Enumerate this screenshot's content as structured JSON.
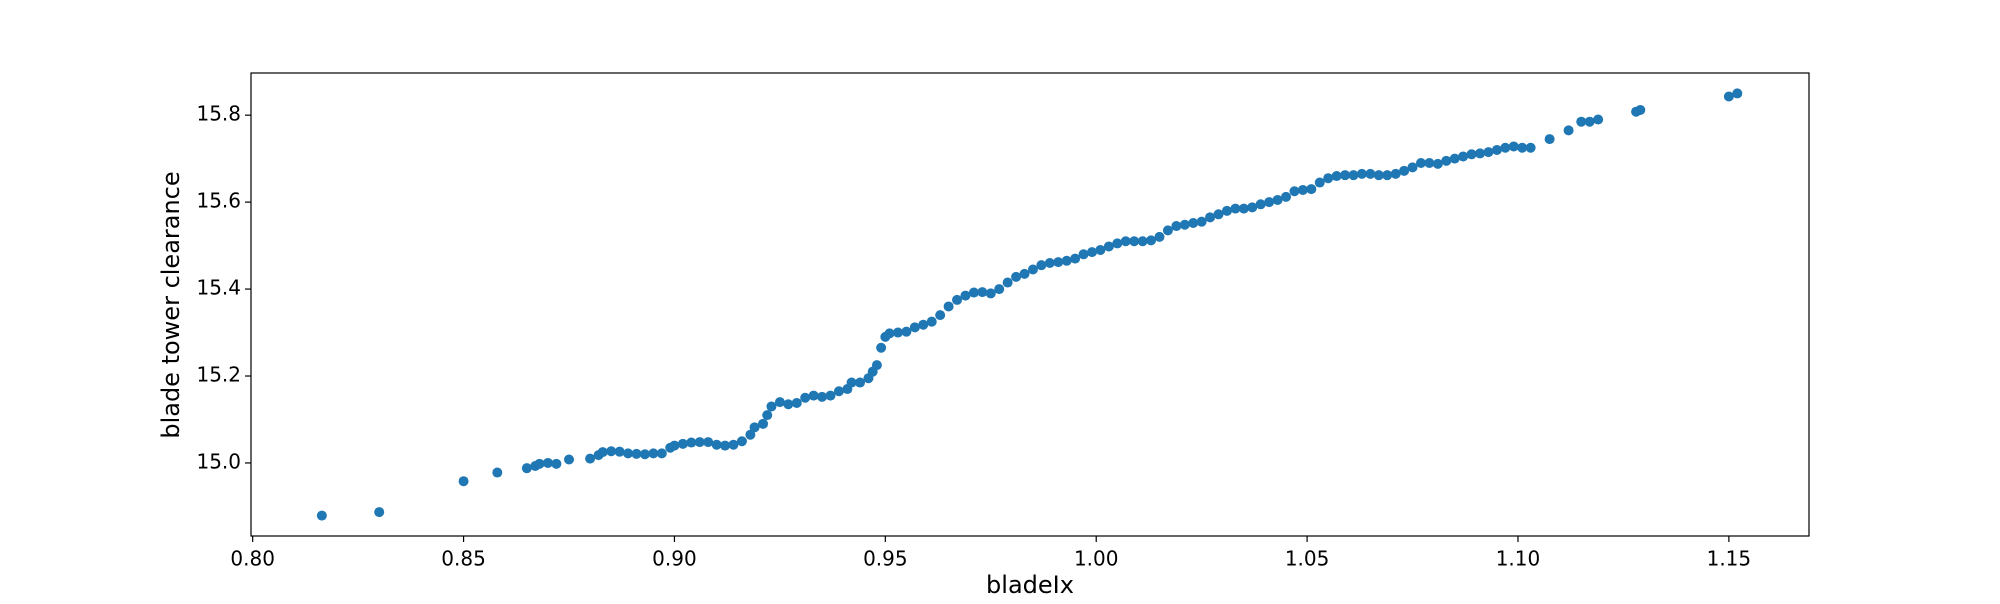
{
  "chart_data": {
    "type": "scatter",
    "x_label": "bladeIx",
    "y_label": "blade tower clearance",
    "color": "#1f77b4",
    "xlim": [
      0.7996,
      1.169
    ],
    "ylim": [
      14.832,
      15.897
    ],
    "xticks": [
      {
        "value": 0.8,
        "label": "0.80"
      },
      {
        "value": 0.85,
        "label": "0.85"
      },
      {
        "value": 0.9,
        "label": "0.90"
      },
      {
        "value": 0.95,
        "label": "0.95"
      },
      {
        "value": 1.0,
        "label": "1.00"
      },
      {
        "value": 1.05,
        "label": "1.05"
      },
      {
        "value": 1.1,
        "label": "1.10"
      },
      {
        "value": 1.15,
        "label": "1.15"
      }
    ],
    "yticks": [
      {
        "value": 15.0,
        "label": "15.0"
      },
      {
        "value": 15.2,
        "label": "15.2"
      },
      {
        "value": 15.4,
        "label": "15.4"
      },
      {
        "value": 15.6,
        "label": "15.6"
      },
      {
        "value": 15.8,
        "label": "15.8"
      }
    ],
    "x": [
      0.8164,
      0.83,
      0.85,
      0.858,
      0.865,
      0.867,
      0.868,
      0.87,
      0.872,
      0.875,
      0.88,
      0.882,
      0.883,
      0.885,
      0.887,
      0.889,
      0.891,
      0.893,
      0.895,
      0.897,
      0.899,
      0.9,
      0.902,
      0.904,
      0.906,
      0.908,
      0.91,
      0.912,
      0.914,
      0.916,
      0.918,
      0.919,
      0.921,
      0.922,
      0.923,
      0.925,
      0.927,
      0.929,
      0.931,
      0.933,
      0.935,
      0.937,
      0.939,
      0.941,
      0.942,
      0.944,
      0.946,
      0.947,
      0.948,
      0.949,
      0.95,
      0.951,
      0.953,
      0.955,
      0.957,
      0.959,
      0.961,
      0.963,
      0.965,
      0.967,
      0.969,
      0.971,
      0.973,
      0.975,
      0.977,
      0.979,
      0.981,
      0.983,
      0.985,
      0.987,
      0.989,
      0.991,
      0.993,
      0.995,
      0.997,
      0.999,
      1.001,
      1.003,
      1.005,
      1.007,
      1.009,
      1.011,
      1.013,
      1.015,
      1.017,
      1.019,
      1.021,
      1.023,
      1.025,
      1.027,
      1.029,
      1.031,
      1.033,
      1.035,
      1.037,
      1.039,
      1.041,
      1.043,
      1.045,
      1.047,
      1.049,
      1.051,
      1.053,
      1.055,
      1.057,
      1.059,
      1.061,
      1.063,
      1.065,
      1.067,
      1.069,
      1.071,
      1.073,
      1.075,
      1.077,
      1.079,
      1.081,
      1.083,
      1.085,
      1.087,
      1.089,
      1.091,
      1.093,
      1.095,
      1.097,
      1.099,
      1.101,
      1.103,
      1.1075,
      1.112,
      1.115,
      1.117,
      1.119,
      1.128,
      1.129,
      1.15,
      1.152
    ],
    "values": [
      14.879,
      14.887,
      14.958,
      14.978,
      14.988,
      14.993,
      14.998,
      15.0,
      14.998,
      15.008,
      15.01,
      15.018,
      15.025,
      15.027,
      15.026,
      15.022,
      15.021,
      15.02,
      15.022,
      15.022,
      15.035,
      15.04,
      15.044,
      15.047,
      15.048,
      15.048,
      15.042,
      15.04,
      15.042,
      15.05,
      15.065,
      15.082,
      15.09,
      15.11,
      15.13,
      15.14,
      15.135,
      15.138,
      15.15,
      15.155,
      15.152,
      15.155,
      15.165,
      15.17,
      15.185,
      15.185,
      15.195,
      15.21,
      15.225,
      15.265,
      15.29,
      15.298,
      15.3,
      15.302,
      15.312,
      15.318,
      15.325,
      15.34,
      15.36,
      15.375,
      15.385,
      15.392,
      15.393,
      15.39,
      15.4,
      15.415,
      15.428,
      15.435,
      15.445,
      15.455,
      15.46,
      15.462,
      15.465,
      15.47,
      15.48,
      15.485,
      15.49,
      15.498,
      15.505,
      15.51,
      15.51,
      15.51,
      15.512,
      15.52,
      15.535,
      15.545,
      15.548,
      15.552,
      15.555,
      15.565,
      15.572,
      15.58,
      15.585,
      15.585,
      15.588,
      15.595,
      15.6,
      15.605,
      15.612,
      15.625,
      15.628,
      15.63,
      15.645,
      15.655,
      15.66,
      15.662,
      15.662,
      15.665,
      15.665,
      15.662,
      15.662,
      15.665,
      15.672,
      15.68,
      15.69,
      15.69,
      15.688,
      15.695,
      15.7,
      15.705,
      15.71,
      15.712,
      15.715,
      15.72,
      15.725,
      15.728,
      15.725,
      15.725,
      15.745,
      15.765,
      15.785,
      15.785,
      15.79,
      15.808,
      15.812,
      15.843,
      15.85
    ]
  }
}
